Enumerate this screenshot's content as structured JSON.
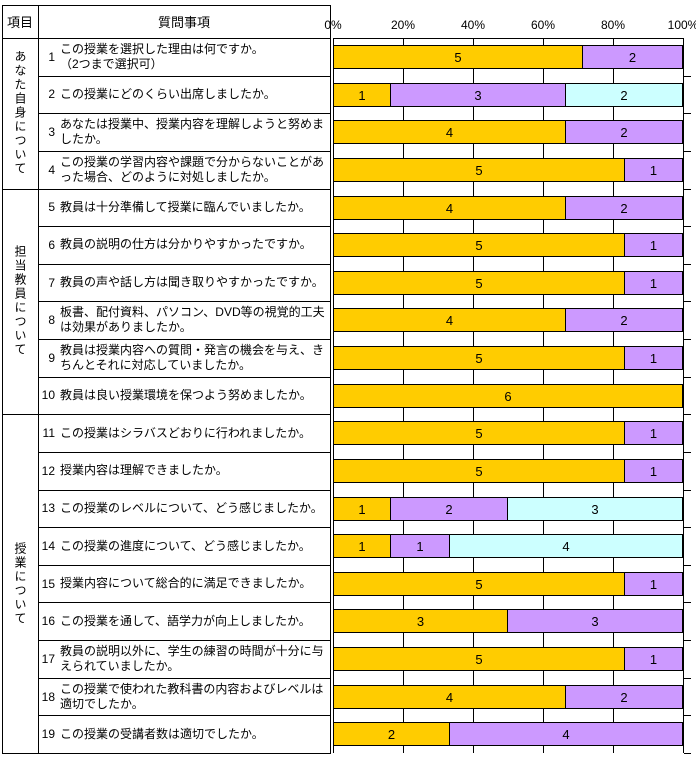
{
  "table": {
    "header_item": "項目",
    "header_question": "質問事項",
    "groups": [
      {
        "label": "あなた自身について",
        "from": 1,
        "to": 4
      },
      {
        "label": "担当教員について",
        "from": 5,
        "to": 10
      },
      {
        "label": "授業について",
        "from": 11,
        "to": 19
      }
    ],
    "questions": [
      {
        "no": "1",
        "text": "この授業を選択した理由は何ですか。",
        "text2": "（2つまで選択可）"
      },
      {
        "no": "2",
        "text": "この授業にどのくらい出席しましたか。"
      },
      {
        "no": "3",
        "text": "あなたは授業中、授業内容を理解しようと努めましたか。"
      },
      {
        "no": "4",
        "text": "この授業の学習内容や課題で分からないことがあった場合、どのように対処しましたか。"
      },
      {
        "no": "5",
        "text": "教員は十分準備して授業に臨んでいましたか。"
      },
      {
        "no": "6",
        "text": "教員の説明の仕方は分かりやすかったですか。"
      },
      {
        "no": "7",
        "text": "教員の声や話し方は聞き取りやすかったですか。"
      },
      {
        "no": "8",
        "text": "板書、配付資料、パソコン、DVD等の視覚的工夫は効果がありましたか。"
      },
      {
        "no": "9",
        "text": "教員は授業内容への質問・発言の機会を与え、きちんとそれに対応していましたか。"
      },
      {
        "no": "10",
        "text": "教員は良い授業環境を保つよう努めましたか。"
      },
      {
        "no": "11",
        "text": "この授業はシラバスどおりに行われましたか。"
      },
      {
        "no": "12",
        "text": "授業内容は理解できましたか。"
      },
      {
        "no": "13",
        "text": "この授業のレベルについて、どう感じましたか。"
      },
      {
        "no": "14",
        "text": "この授業の進度について、どう感じましたか。"
      },
      {
        "no": "15",
        "text": "授業内容について総合的に満足できましたか。"
      },
      {
        "no": "16",
        "text": "この授業を通して、語学力が向上しましたか。"
      },
      {
        "no": "17",
        "text": "教員の説明以外に、学生の練習の時間が十分に与えられていましたか。"
      },
      {
        "no": "18",
        "text": "この授業で使われた教科書の内容およびレベルは適切でしたか。"
      },
      {
        "no": "19",
        "text": "この授業の受講者数は適切でしたか。"
      }
    ]
  },
  "chart_data": {
    "type": "bar",
    "orientation": "horizontal",
    "stacked": true,
    "value_axis": {
      "position": "top",
      "ticks": [
        "0%",
        "20%",
        "40%",
        "60%",
        "80%",
        "100%"
      ],
      "range_percent": [
        0,
        100
      ]
    },
    "grid": true,
    "legend": "none",
    "categories": [
      "1",
      "2",
      "3",
      "4",
      "5",
      "6",
      "7",
      "8",
      "9",
      "10",
      "11",
      "12",
      "13",
      "14",
      "15",
      "16",
      "17",
      "18",
      "19"
    ],
    "series": [
      {
        "name": "gold",
        "color": "#FFCC00",
        "values": [
          5,
          1,
          4,
          5,
          4,
          5,
          5,
          4,
          5,
          6,
          5,
          5,
          1,
          1,
          5,
          3,
          5,
          4,
          2
        ]
      },
      {
        "name": "purple",
        "color": "#CC99FF",
        "values": [
          2,
          3,
          2,
          1,
          2,
          1,
          1,
          2,
          1,
          0,
          1,
          1,
          2,
          1,
          1,
          3,
          1,
          2,
          4
        ]
      },
      {
        "name": "cyan",
        "color": "#CCFFFF",
        "values": [
          0,
          2,
          0,
          0,
          0,
          0,
          0,
          0,
          0,
          0,
          0,
          0,
          3,
          4,
          0,
          0,
          0,
          0,
          0
        ]
      }
    ],
    "note_segment_widths": "each segment width = value / row total × 100%"
  },
  "colors": {
    "background": "#FFFFFF",
    "bar_border": "#000000",
    "grid_line": "#000000",
    "text": "#000000"
  }
}
